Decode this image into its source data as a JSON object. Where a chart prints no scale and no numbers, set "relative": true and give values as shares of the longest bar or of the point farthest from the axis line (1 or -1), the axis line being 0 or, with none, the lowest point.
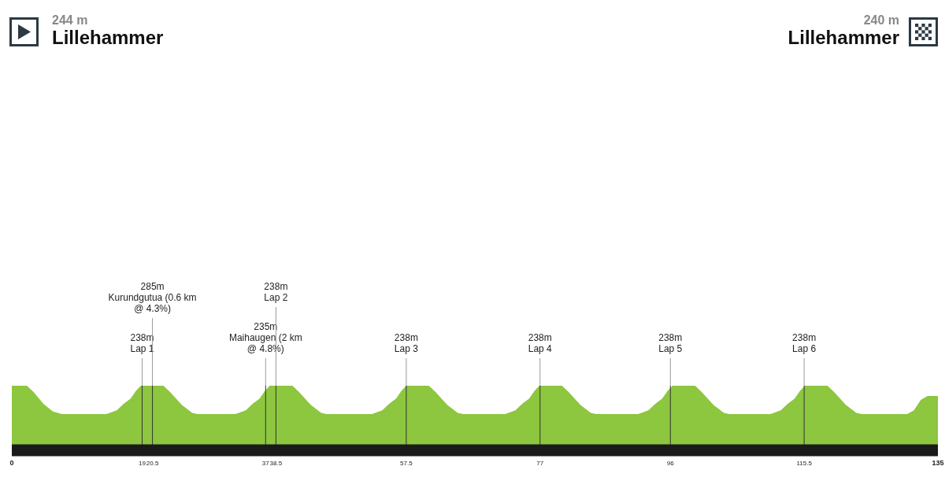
{
  "chart_data": {
    "type": "area",
    "relative": true,
    "color": "#8dc63f",
    "x": [
      0,
      2.2,
      3.2,
      4.6,
      6,
      7.3,
      13.8,
      15.3,
      16.3,
      17.3,
      18.1,
      18.8,
      22.1,
      23.1,
      24.8,
      26.3,
      27.1,
      32.6,
      34.1,
      35.1,
      36.1,
      36.9,
      37.6,
      40.9,
      41.9,
      43.6,
      45.1,
      45.9,
      52.5,
      54,
      55,
      56,
      56.8,
      57.5,
      60.8,
      61.8,
      63.5,
      65,
      65.8,
      71.9,
      73.4,
      74.4,
      75.4,
      76.2,
      76.9,
      80.2,
      81.2,
      82.9,
      84.4,
      85.2,
      91.3,
      92.8,
      93.8,
      94.8,
      95.6,
      96.3,
      99.6,
      100.6,
      102.3,
      103.8,
      104.6,
      110.6,
      112.1,
      113.1,
      114.1,
      114.9,
      115.6,
      118.9,
      119.9,
      121.6,
      123.1,
      123.9,
      130.5,
      131.5,
      132.5,
      133.5,
      135
    ],
    "values": [
      1,
      1,
      0.9,
      0.72,
      0.6,
      0.56,
      0.56,
      0.62,
      0.72,
      0.8,
      0.92,
      1,
      1,
      0.9,
      0.7,
      0.58,
      0.56,
      0.56,
      0.62,
      0.72,
      0.8,
      0.92,
      1,
      1,
      0.9,
      0.7,
      0.58,
      0.56,
      0.56,
      0.62,
      0.72,
      0.8,
      0.92,
      1,
      1,
      0.9,
      0.7,
      0.58,
      0.56,
      0.56,
      0.62,
      0.72,
      0.8,
      0.92,
      1,
      1,
      0.9,
      0.7,
      0.58,
      0.56,
      0.56,
      0.62,
      0.72,
      0.8,
      0.92,
      1,
      1,
      0.9,
      0.7,
      0.58,
      0.56,
      0.56,
      0.62,
      0.72,
      0.8,
      0.92,
      1,
      1,
      0.9,
      0.7,
      0.58,
      0.56,
      0.56,
      0.62,
      0.78,
      0.84,
      0.84
    ],
    "xlim": [
      0,
      135
    ],
    "xticks": [
      0,
      19,
      20.5,
      37,
      38.5,
      57.5,
      77,
      96,
      115.5,
      135
    ],
    "ref_lines": [
      {
        "axis": "x",
        "value": 19,
        "label": "238m\nLap 1"
      },
      {
        "axis": "x",
        "value": 20.5,
        "label": "285m\nKurundgutua (0.6 km\n@ 4.3%)"
      },
      {
        "axis": "x",
        "value": 37,
        "label": "235m\nMaihaugen (2 km\n@ 4.8%)"
      },
      {
        "axis": "x",
        "value": 38.5,
        "label": "238m\nLap 2"
      },
      {
        "axis": "x",
        "value": 57.5,
        "label": "238m\nLap 3"
      },
      {
        "axis": "x",
        "value": 77,
        "label": "238m\nLap 4"
      },
      {
        "axis": "x",
        "value": 96,
        "label": "238m\nLap 5"
      },
      {
        "axis": "x",
        "value": 115.5,
        "label": "238m\nLap 6"
      }
    ],
    "annotations": [
      "244 m",
      "Lillehammer",
      "240 m",
      "Lillehammer"
    ]
  }
}
